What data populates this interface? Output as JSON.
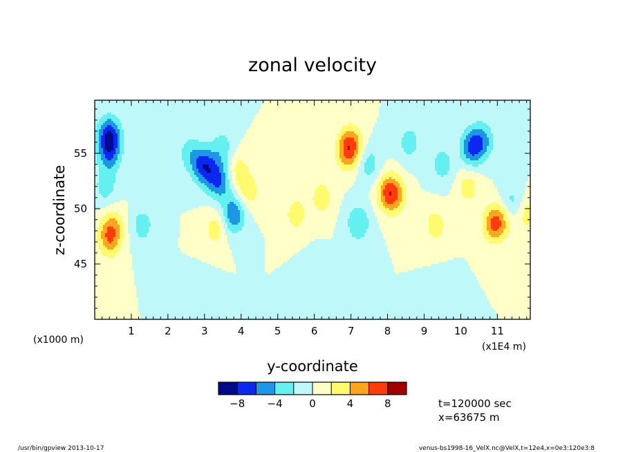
{
  "chart_data": {
    "type": "heatmap",
    "title": "zonal velocity",
    "xlabel": "y-coordinate",
    "ylabel": "z-coordinate",
    "x_unit": "(x1E4 m)",
    "y_unit": "(x1000 m)",
    "xlim": [
      0,
      11.9
    ],
    "ylim": [
      40,
      59.8
    ],
    "x_ticks": [
      1,
      2,
      3,
      4,
      5,
      6,
      7,
      8,
      9,
      10,
      11
    ],
    "x_tick_labels": [
      "1",
      "2",
      "3",
      "4",
      "5",
      "6",
      "7",
      "8",
      "9",
      "10",
      "11"
    ],
    "y_ticks": [
      45,
      50,
      55
    ],
    "y_tick_labels": [
      "45",
      "50",
      "55"
    ],
    "colorbar": {
      "levels": [
        -10,
        -8,
        -6,
        -4,
        -2,
        0,
        2,
        4,
        6,
        8,
        10
      ],
      "colors": [
        "#000a8c",
        "#0a28f0",
        "#1e96e6",
        "#64f0f0",
        "#bef8f8",
        "#ffffc8",
        "#fffa6e",
        "#ffa51e",
        "#ff3c0a",
        "#a00000"
      ],
      "tick_values": [
        -8,
        -4,
        0,
        4,
        8
      ],
      "tick_labels": [
        "−8",
        "−4",
        "0",
        "4",
        "8"
      ]
    },
    "features": [
      {
        "y": 0.4,
        "z": 56.7,
        "value": -7
      },
      {
        "y": 0.4,
        "z": 55.0,
        "value": -5
      },
      {
        "y": 0.3,
        "z": 52.0,
        "value": -3
      },
      {
        "y": 0.4,
        "z": 47.3,
        "value": 5
      },
      {
        "y": 0.5,
        "z": 48.5,
        "value": 3
      },
      {
        "y": 1.3,
        "z": 48.5,
        "value": -3
      },
      {
        "y": 2.6,
        "z": 55.0,
        "value": -3
      },
      {
        "y": 3.0,
        "z": 53.8,
        "value": -7
      },
      {
        "y": 3.3,
        "z": 48.2,
        "value": 3
      },
      {
        "y": 3.4,
        "z": 52.5,
        "value": -6
      },
      {
        "y": 3.5,
        "z": 55.5,
        "value": -3
      },
      {
        "y": 3.9,
        "z": 53.5,
        "value": 3
      },
      {
        "y": 3.8,
        "z": 49.5,
        "value": -6
      },
      {
        "y": 4.2,
        "z": 51.5,
        "value": 3
      },
      {
        "y": 5.5,
        "z": 49.5,
        "value": 3
      },
      {
        "y": 6.2,
        "z": 51.0,
        "value": 3
      },
      {
        "y": 6.9,
        "z": 55.0,
        "value": 4
      },
      {
        "y": 7.0,
        "z": 55.9,
        "value": 5
      },
      {
        "y": 7.2,
        "z": 48.7,
        "value": -4
      },
      {
        "y": 7.5,
        "z": 54.0,
        "value": -3
      },
      {
        "y": 8.0,
        "z": 51.5,
        "value": 5
      },
      {
        "y": 8.2,
        "z": 51.2,
        "value": 4
      },
      {
        "y": 8.6,
        "z": 56.0,
        "value": -3
      },
      {
        "y": 9.3,
        "z": 48.5,
        "value": 3
      },
      {
        "y": 9.5,
        "z": 54.0,
        "value": -3
      },
      {
        "y": 10.2,
        "z": 52.0,
        "value": 3
      },
      {
        "y": 10.3,
        "z": 55.5,
        "value": -6
      },
      {
        "y": 10.6,
        "z": 56.2,
        "value": -4
      },
      {
        "y": 10.9,
        "z": 48.6,
        "value": 5
      },
      {
        "y": 11.1,
        "z": 49.0,
        "value": 3
      },
      {
        "y": 11.4,
        "z": 50.5,
        "value": -3
      },
      {
        "y": 11.8,
        "z": 49.5,
        "value": 3
      },
      {
        "y": 6.0,
        "z": 44.0,
        "value": -1.5
      },
      {
        "y": 3.0,
        "z": 42.0,
        "value": -1.5
      },
      {
        "y": 9.5,
        "z": 42.0,
        "value": -1.5
      }
    ]
  },
  "info": {
    "time": "t=120000 sec",
    "position": "x=63675 m"
  },
  "footer": {
    "left": "/usr/bin/gpview   2013-10-17",
    "right": "venus-bs1998-16_VelX.nc@VelX,t=12e4,x=0e3:120e3:8"
  }
}
